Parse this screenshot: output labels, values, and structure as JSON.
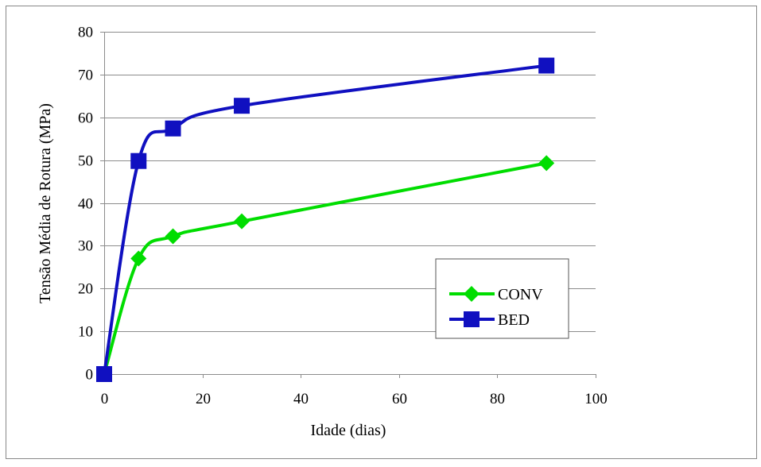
{
  "chart_data": {
    "type": "line",
    "title": "",
    "xlabel": "Idade (dias)",
    "ylabel": "Tensão Média de Rotura (MPa)",
    "xlim": [
      0,
      100
    ],
    "ylim": [
      0,
      80
    ],
    "x_ticks": [
      "0",
      "20",
      "40",
      "60",
      "80",
      "100"
    ],
    "y_ticks": [
      "0",
      "10",
      "20",
      "30",
      "40",
      "50",
      "60",
      "70",
      "80"
    ],
    "grid": "horizontal",
    "smoothed": true,
    "legend_position": "bottom-right",
    "series": [
      {
        "name": "CONV",
        "color": "#00dd00",
        "marker": "diamond",
        "x": [
          0,
          7,
          14,
          28,
          90
        ],
        "y": [
          0,
          27.0,
          32.2,
          35.7,
          49.3
        ]
      },
      {
        "name": "BED",
        "color": "#1010c0",
        "marker": "square",
        "x": [
          0,
          7,
          14,
          28,
          90
        ],
        "y": [
          0,
          49.8,
          57.4,
          62.7,
          72.1
        ]
      }
    ]
  }
}
